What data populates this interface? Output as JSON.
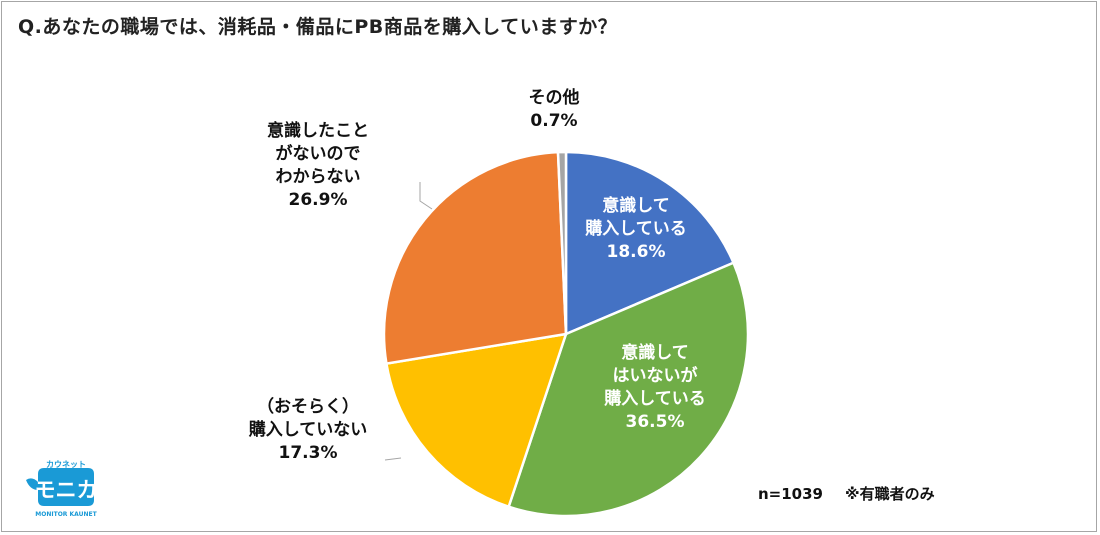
{
  "header": {
    "title": "Q.あなたの職場では、消耗品・備品にPB商品を購入していますか？"
  },
  "chart_data": {
    "type": "pie",
    "slices": [
      {
        "lines": [
          "意識して",
          "購入している"
        ],
        "value": 18.6,
        "value_label": "18.6%",
        "color": "#4472c4"
      },
      {
        "lines": [
          "意識して",
          "はいないが",
          "購入している"
        ],
        "value": 36.5,
        "value_label": "36.5%",
        "color": "#70ad47"
      },
      {
        "lines": [
          "（おそらく）",
          "購入していない"
        ],
        "value": 17.3,
        "value_label": "17.3%",
        "color": "#ffc000"
      },
      {
        "lines": [
          "意識したこと",
          "がないので",
          "わからない"
        ],
        "value": 26.9,
        "value_label": "26.9%",
        "color": "#ed7d31"
      },
      {
        "lines": [
          "その他"
        ],
        "value": 0.7,
        "value_label": "0.7%",
        "color": "#a5a5a5"
      }
    ]
  },
  "footnote": {
    "n": "n=1039",
    "note": "※有職者のみ"
  },
  "logo": {
    "top": "カウネット",
    "main": "モニカ",
    "bottom": "MONITOR KAUNET"
  }
}
